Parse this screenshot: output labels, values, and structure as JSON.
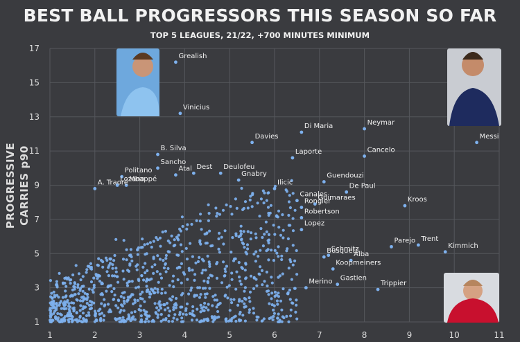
{
  "chart_data": {
    "type": "scatter",
    "title": "BEST BALL PROGRESSORS THIS SEASON SO FAR",
    "subtitle": "TOP 5 LEAGUES, 21/22, +700 MINUTES MINIMUM",
    "xlabel": "",
    "ylabel": "PROGRESSIVE CARRIES p90",
    "xlim": [
      1,
      11
    ],
    "ylim": [
      1,
      17
    ],
    "xticks": [
      "1",
      "2",
      "3",
      "4",
      "5",
      "6",
      "7",
      "8",
      "9",
      "10",
      "11"
    ],
    "yticks": [
      "1",
      "3",
      "5",
      "7",
      "9",
      "11",
      "13",
      "15",
      "17"
    ],
    "grid": true,
    "point_color": "#7eb1ee",
    "labeled_points": [
      {
        "name": "Grealish",
        "x": 3.8,
        "y": 16.2
      },
      {
        "name": "Vinicius",
        "x": 3.9,
        "y": 13.2
      },
      {
        "name": "Di Maria",
        "x": 6.6,
        "y": 12.1
      },
      {
        "name": "Neymar",
        "x": 8.0,
        "y": 12.3
      },
      {
        "name": "Messi",
        "x": 10.5,
        "y": 11.5
      },
      {
        "name": "Davies",
        "x": 5.5,
        "y": 11.5
      },
      {
        "name": "Cancelo",
        "x": 8.0,
        "y": 10.7
      },
      {
        "name": "Laporte",
        "x": 6.4,
        "y": 10.6
      },
      {
        "name": "B. Silva",
        "x": 3.4,
        "y": 10.8
      },
      {
        "name": "Sancho",
        "x": 3.4,
        "y": 10.0
      },
      {
        "name": "Atal",
        "x": 3.8,
        "y": 9.6
      },
      {
        "name": "Dest",
        "x": 4.2,
        "y": 9.7
      },
      {
        "name": "Deulofeu",
        "x": 4.8,
        "y": 9.7
      },
      {
        "name": "Gnabry",
        "x": 5.2,
        "y": 9.3
      },
      {
        "name": "Politano",
        "x": 2.6,
        "y": 9.5
      },
      {
        "name": "Lozano",
        "x": 2.5,
        "y": 9.0
      },
      {
        "name": "Mbappé",
        "x": 2.7,
        "y": 9.0
      },
      {
        "name": "A. Traoré",
        "x": 2.0,
        "y": 8.8
      },
      {
        "name": "Ilicic",
        "x": 6.0,
        "y": 8.8
      },
      {
        "name": "Guendouzi",
        "x": 7.1,
        "y": 9.2
      },
      {
        "name": "De Paul",
        "x": 7.6,
        "y": 8.6
      },
      {
        "name": "Canales",
        "x": 6.5,
        "y": 8.1
      },
      {
        "name": "Guimaraes",
        "x": 6.9,
        "y": 7.9
      },
      {
        "name": "Kroos",
        "x": 8.9,
        "y": 7.8
      },
      {
        "name": "Rongier",
        "x": 6.6,
        "y": 7.7
      },
      {
        "name": "Robertson",
        "x": 6.6,
        "y": 7.1
      },
      {
        "name": "Lopez",
        "x": 6.6,
        "y": 6.4
      },
      {
        "name": "Busquets",
        "x": 7.1,
        "y": 4.8
      },
      {
        "name": "Parejo",
        "x": 8.6,
        "y": 5.4
      },
      {
        "name": "Trent",
        "x": 9.2,
        "y": 5.5
      },
      {
        "name": "Kimmich",
        "x": 9.8,
        "y": 5.1
      },
      {
        "name": "Schmitz",
        "x": 7.2,
        "y": 4.9
      },
      {
        "name": "Alba",
        "x": 7.7,
        "y": 4.6
      },
      {
        "name": "Koopmeiners",
        "x": 7.3,
        "y": 4.1
      },
      {
        "name": "Gastien",
        "x": 7.4,
        "y": 3.2
      },
      {
        "name": "Merino",
        "x": 6.7,
        "y": 3.0
      },
      {
        "name": "Trippier",
        "x": 8.3,
        "y": 2.9
      }
    ],
    "background_cloud": {
      "description_count": 950,
      "x_range": [
        1,
        6.5
      ],
      "y_range": [
        1,
        9
      ]
    }
  }
}
